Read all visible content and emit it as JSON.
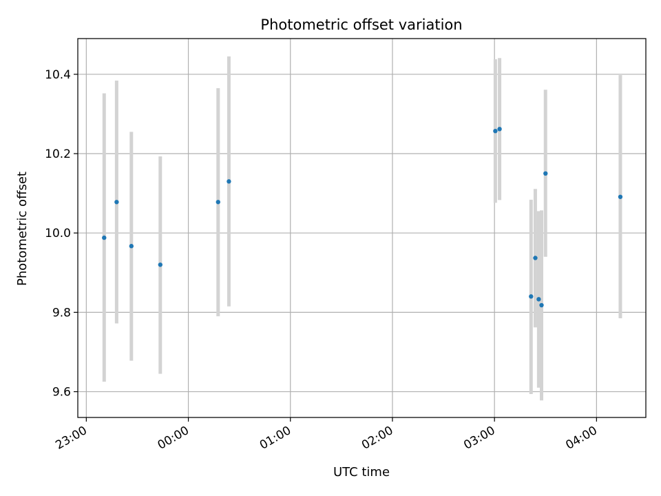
{
  "chart_data": {
    "type": "scatter",
    "title": "Photometric offset variation",
    "xlabel": "UTC time",
    "ylabel": "Photometric offset",
    "x_axis": {
      "kind": "time",
      "range": [
        "22:55",
        "04:29"
      ],
      "ticks": [
        "23:00",
        "00:00",
        "01:00",
        "02:00",
        "03:00",
        "04:00"
      ]
    },
    "y_axis": {
      "range": [
        9.535,
        10.49
      ],
      "ticks": [
        "9.6",
        "9.8",
        "10.0",
        "10.2",
        "10.4"
      ]
    },
    "grid": true,
    "marker_color": "#1f77b4",
    "errorbar_color": "#d3d3d3",
    "points": [
      {
        "time": "23:10:30",
        "value": 9.988,
        "low": 9.625,
        "high": 10.352
      },
      {
        "time": "23:17:50",
        "value": 10.078,
        "low": 9.772,
        "high": 10.384
      },
      {
        "time": "23:26:30",
        "value": 9.967,
        "low": 9.678,
        "high": 10.255
      },
      {
        "time": "23:43:30",
        "value": 9.92,
        "low": 9.645,
        "high": 10.193
      },
      {
        "time": "00:17:30",
        "value": 10.078,
        "low": 9.79,
        "high": 10.365
      },
      {
        "time": "00:23:50",
        "value": 10.13,
        "low": 9.815,
        "high": 10.445
      },
      {
        "time": "03:00:30",
        "value": 10.257,
        "low": 10.076,
        "high": 10.438
      },
      {
        "time": "03:03:00",
        "value": 10.262,
        "low": 10.083,
        "high": 10.441
      },
      {
        "time": "03:21:30",
        "value": 9.84,
        "low": 9.594,
        "high": 10.084
      },
      {
        "time": "03:24:00",
        "value": 9.937,
        "low": 9.762,
        "high": 10.111
      },
      {
        "time": "03:26:00",
        "value": 9.833,
        "low": 9.61,
        "high": 10.055
      },
      {
        "time": "03:27:40",
        "value": 9.818,
        "low": 9.578,
        "high": 10.057
      },
      {
        "time": "03:30:00",
        "value": 10.15,
        "low": 9.94,
        "high": 10.361
      },
      {
        "time": "04:14:00",
        "value": 10.091,
        "low": 9.785,
        "high": 10.398
      }
    ]
  }
}
